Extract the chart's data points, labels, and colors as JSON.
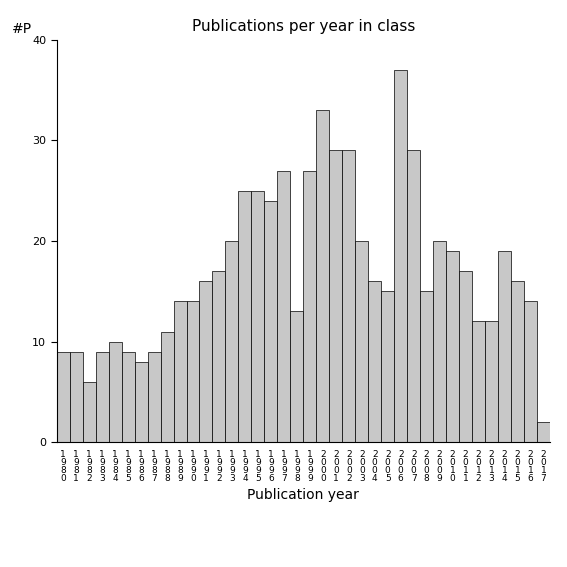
{
  "title": "Publications per year in class",
  "xlabel": "Publication year",
  "ylabel": "#P",
  "years": [
    1980,
    1981,
    1982,
    1983,
    1984,
    1985,
    1986,
    1987,
    1988,
    1989,
    1990,
    1991,
    1992,
    1993,
    1994,
    1995,
    1996,
    1997,
    1998,
    1999,
    2000,
    2001,
    2002,
    2003,
    2004,
    2005,
    2006,
    2007,
    2008,
    2009,
    2010,
    2011,
    2012,
    2013,
    2014,
    2015,
    2016,
    2017
  ],
  "values": [
    9,
    9,
    6,
    9,
    10,
    9,
    8,
    9,
    11,
    14,
    14,
    16,
    17,
    20,
    25,
    25,
    24,
    27,
    13,
    27,
    33,
    29,
    29,
    20,
    16,
    15,
    37,
    29,
    15,
    20,
    19,
    17,
    12,
    12,
    19,
    16,
    14,
    2
  ],
  "bar_color": "#c8c8c8",
  "bar_edgecolor": "#000000",
  "ylim": [
    0,
    40
  ],
  "yticks": [
    0,
    10,
    20,
    30,
    40
  ],
  "background_color": "#ffffff",
  "title_fontsize": 11,
  "axis_fontsize": 10,
  "tick_fontsize": 8
}
